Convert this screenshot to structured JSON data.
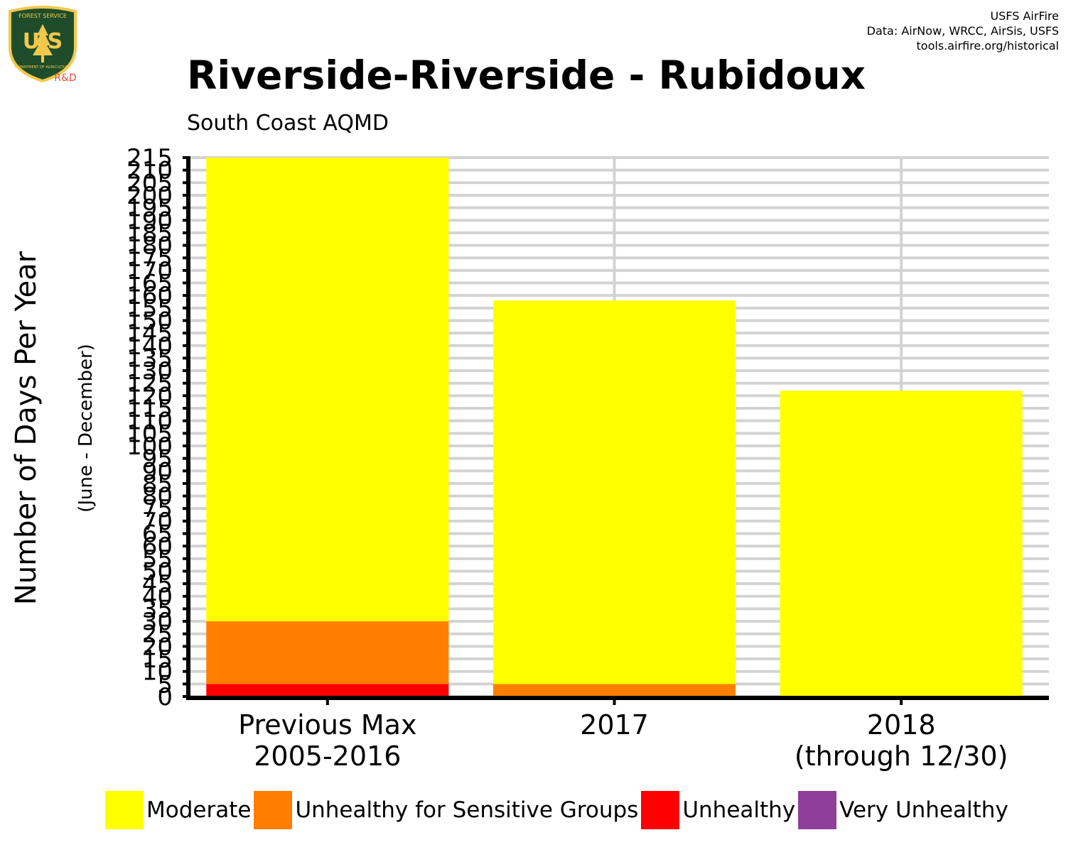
{
  "logo": {
    "top_text": "FOREST SERVICE",
    "letters": "U S",
    "bottom_text": "DEPARTMENT OF AGRICULTURE",
    "badge": "R&D"
  },
  "credits": {
    "line1": "USFS AirFire",
    "line2": "Data: AirNow, WRCC, AirSis, USFS",
    "line3": "tools.airfire.org/historical"
  },
  "colors": {
    "moderate": "#ffff00",
    "usg": "#ff7e00",
    "unhealthy": "#ff0000",
    "very_unhealthy": "#8f3f97",
    "grid": "#d3d3d3",
    "logo_green": "#1f4d2b",
    "logo_gold": "#f2c94c",
    "badge": "#e74c3c"
  },
  "chart_data": {
    "type": "bar",
    "stacked": true,
    "title": "Riverside-Riverside - Rubidoux",
    "subtitle": "South Coast AQMD",
    "ylabel": "Number of Days Per Year",
    "ylabel_secondary": "(June - December)",
    "xlabel": "",
    "ylim": [
      0,
      215
    ],
    "yticks": [
      0,
      5,
      10,
      15,
      20,
      25,
      30,
      35,
      40,
      45,
      50,
      55,
      60,
      65,
      70,
      75,
      80,
      85,
      90,
      95,
      100,
      105,
      110,
      115,
      120,
      125,
      130,
      135,
      140,
      145,
      150,
      155,
      160,
      165,
      170,
      175,
      180,
      185,
      190,
      195,
      200,
      205,
      210,
      215
    ],
    "categories": [
      "Previous Max\n2005-2016",
      "2017",
      "2018\n(through 12/30)"
    ],
    "series": [
      {
        "name": "Unhealthy",
        "color": "#ff0000",
        "values": [
          5,
          0,
          0
        ]
      },
      {
        "name": "Unhealthy for Sensitive Groups",
        "color": "#ff7e00",
        "values": [
          25,
          5,
          0
        ]
      },
      {
        "name": "Moderate",
        "color": "#ffff00",
        "values": [
          185,
          153,
          122
        ]
      },
      {
        "name": "Very Unhealthy",
        "color": "#8f3f97",
        "values": [
          0,
          0,
          0
        ]
      }
    ],
    "grid": true,
    "legend": {
      "position": "bottom",
      "order": [
        "Moderate",
        "Unhealthy for Sensitive Groups",
        "Unhealthy",
        "Very Unhealthy"
      ]
    }
  },
  "legend_items": [
    {
      "label": "Moderate",
      "color": "#ffff00"
    },
    {
      "label": "Unhealthy for Sensitive Groups",
      "color": "#ff7e00"
    },
    {
      "label": "Unhealthy",
      "color": "#ff0000"
    },
    {
      "label": "Very Unhealthy",
      "color": "#8f3f97"
    }
  ]
}
